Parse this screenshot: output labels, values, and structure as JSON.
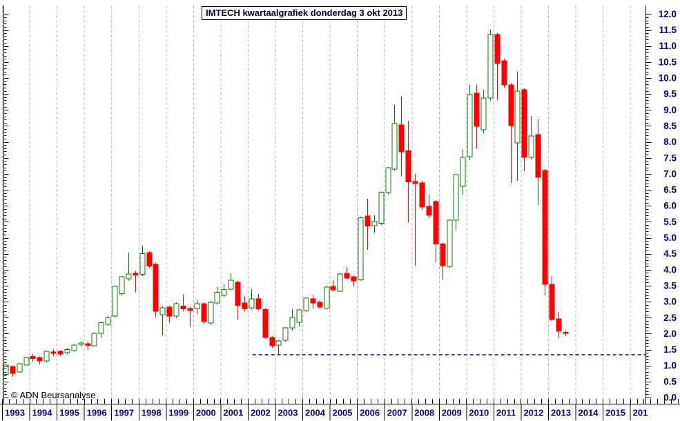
{
  "window": {
    "title_box": "IMTECH kwartaalgrafiek donderdag 3 okt 2013",
    "copyright": "© ADN Beursanalyse"
  },
  "colors": {
    "up": "#008000",
    "up_fill": "#ffffff",
    "down": "#ff0000",
    "grid": "#b9b9b9",
    "axis": "#000000",
    "label": "#00008b",
    "support": "#0000cc"
  },
  "chart_data": {
    "type": "candlestick",
    "title": "IMTECH kwartaalgrafiek donderdag 3 okt 2013",
    "frequency": "quarterly",
    "grid": "vertical-yearly-dashed",
    "x_axis": {
      "year_labels": [
        "1993",
        "1994",
        "1995",
        "1996",
        "1997",
        "1998",
        "1999",
        "2000",
        "2001",
        "2002",
        "2003",
        "2004",
        "2005",
        "2006",
        "2007",
        "2008",
        "2009",
        "2010",
        "2011",
        "2012",
        "2013",
        "2014",
        "2015",
        "201"
      ]
    },
    "y_axis": {
      "side": "right",
      "min": 0.0,
      "max": 12.0,
      "step": 0.5,
      "minor_step": 0.1,
      "tick_labels": [
        "0.0",
        "0.5",
        "1.0",
        "1.5",
        "2.0",
        "2.5",
        "3.0",
        "3.5",
        "4.0",
        "4.5",
        "5.0",
        "5.5",
        "6.0",
        "6.5",
        "7.0",
        "7.5",
        "8.0",
        "8.5",
        "9.0",
        "9.5",
        "10.0",
        "10.5",
        "11.0",
        "11.5",
        "12.0"
      ]
    },
    "support_line": {
      "value": 1.34,
      "style": "dashed",
      "color": "#0000cc",
      "starts_at": "2002 Q2"
    },
    "candles": [
      {
        "t": "1993 Q1",
        "ohlc": [
          0.72,
          1.04,
          0.7,
          1.02
        ]
      },
      {
        "t": "1993 Q2",
        "ohlc": [
          0.97,
          0.99,
          0.65,
          0.76
        ]
      },
      {
        "t": "1993 Q3",
        "ohlc": [
          0.8,
          1.08,
          0.78,
          1.06
        ]
      },
      {
        "t": "1993 Q4",
        "ohlc": [
          1.02,
          1.27,
          1.0,
          1.25
        ]
      },
      {
        "t": "1994 Q1",
        "ohlc": [
          1.28,
          1.36,
          1.12,
          1.22
        ]
      },
      {
        "t": "1994 Q2",
        "ohlc": [
          1.25,
          1.28,
          1.03,
          1.15
        ]
      },
      {
        "t": "1994 Q3",
        "ohlc": [
          1.15,
          1.47,
          1.1,
          1.45
        ]
      },
      {
        "t": "1994 Q4",
        "ohlc": [
          1.43,
          1.52,
          1.28,
          1.38
        ]
      },
      {
        "t": "1995 Q1",
        "ohlc": [
          1.45,
          1.48,
          1.3,
          1.36
        ]
      },
      {
        "t": "1995 Q2",
        "ohlc": [
          1.4,
          1.54,
          1.35,
          1.5
        ]
      },
      {
        "t": "1995 Q3",
        "ohlc": [
          1.47,
          1.67,
          1.44,
          1.64
        ]
      },
      {
        "t": "1995 Q4",
        "ohlc": [
          1.66,
          1.76,
          1.6,
          1.71
        ]
      },
      {
        "t": "1996 Q1",
        "ohlc": [
          1.69,
          1.76,
          1.48,
          1.63
        ]
      },
      {
        "t": "1996 Q2",
        "ohlc": [
          1.62,
          2.03,
          1.6,
          2.01
        ]
      },
      {
        "t": "1996 Q3",
        "ohlc": [
          2.01,
          2.36,
          1.88,
          2.34
        ]
      },
      {
        "t": "1996 Q4",
        "ohlc": [
          2.29,
          2.55,
          2.25,
          2.49
        ]
      },
      {
        "t": "1997 Q1",
        "ohlc": [
          2.55,
          3.5,
          2.5,
          3.48
        ]
      },
      {
        "t": "1997 Q2",
        "ohlc": [
          3.25,
          3.8,
          3.2,
          3.78
        ]
      },
      {
        "t": "1997 Q3",
        "ohlc": [
          3.72,
          4.54,
          3.65,
          3.87
        ]
      },
      {
        "t": "1997 Q4",
        "ohlc": [
          3.89,
          3.96,
          3.29,
          3.83
        ]
      },
      {
        "t": "1998 Q1",
        "ohlc": [
          3.85,
          4.76,
          3.8,
          4.5
        ]
      },
      {
        "t": "1998 Q2",
        "ohlc": [
          4.54,
          4.58,
          4.05,
          4.11
        ]
      },
      {
        "t": "1998 Q3",
        "ohlc": [
          4.17,
          4.22,
          2.53,
          2.7
        ]
      },
      {
        "t": "1998 Q4",
        "ohlc": [
          2.59,
          2.85,
          1.95,
          2.81
        ]
      },
      {
        "t": "1999 Q1",
        "ohlc": [
          2.83,
          2.87,
          2.34,
          2.55
        ]
      },
      {
        "t": "1999 Q2",
        "ohlc": [
          2.55,
          2.98,
          2.5,
          2.94
        ]
      },
      {
        "t": "1999 Q3",
        "ohlc": [
          2.86,
          3.22,
          2.7,
          2.77
        ]
      },
      {
        "t": "1999 Q4",
        "ohlc": [
          2.79,
          2.84,
          2.21,
          2.72
        ]
      },
      {
        "t": "2000 Q1",
        "ohlc": [
          2.78,
          3.05,
          2.6,
          2.94
        ]
      },
      {
        "t": "2000 Q2",
        "ohlc": [
          2.94,
          2.98,
          2.3,
          2.38
        ]
      },
      {
        "t": "2000 Q3",
        "ohlc": [
          2.33,
          3.02,
          2.27,
          2.98
        ]
      },
      {
        "t": "2000 Q4",
        "ohlc": [
          2.96,
          3.46,
          2.9,
          3.29
        ]
      },
      {
        "t": "2001 Q1",
        "ohlc": [
          3.2,
          3.55,
          3.15,
          3.38
        ]
      },
      {
        "t": "2001 Q2",
        "ohlc": [
          3.39,
          3.89,
          3.35,
          3.67
        ]
      },
      {
        "t": "2001 Q3",
        "ohlc": [
          3.61,
          3.65,
          2.44,
          2.88
        ]
      },
      {
        "t": "2001 Q4",
        "ohlc": [
          2.96,
          3.18,
          2.7,
          2.77
        ]
      },
      {
        "t": "2002 Q1",
        "ohlc": [
          2.81,
          3.39,
          2.75,
          3.09
        ]
      },
      {
        "t": "2002 Q2",
        "ohlc": [
          3.09,
          3.25,
          2.72,
          2.77
        ]
      },
      {
        "t": "2002 Q3",
        "ohlc": [
          2.75,
          2.8,
          1.85,
          1.88
        ]
      },
      {
        "t": "2002 Q4",
        "ohlc": [
          1.88,
          1.92,
          1.55,
          1.62
        ]
      },
      {
        "t": "2003 Q1",
        "ohlc": [
          1.64,
          1.8,
          1.32,
          1.77
        ]
      },
      {
        "t": "2003 Q2",
        "ohlc": [
          1.79,
          2.2,
          1.75,
          2.18
        ]
      },
      {
        "t": "2003 Q3",
        "ohlc": [
          2.18,
          2.76,
          2.1,
          2.51
        ]
      },
      {
        "t": "2003 Q4",
        "ohlc": [
          2.35,
          2.78,
          2.22,
          2.74
        ]
      },
      {
        "t": "2004 Q1",
        "ohlc": [
          2.72,
          3.13,
          2.68,
          3.11
        ]
      },
      {
        "t": "2004 Q2",
        "ohlc": [
          3.09,
          3.22,
          2.79,
          2.96
        ]
      },
      {
        "t": "2004 Q3",
        "ohlc": [
          2.98,
          3.04,
          2.78,
          2.83
        ]
      },
      {
        "t": "2004 Q4",
        "ohlc": [
          2.79,
          3.49,
          2.75,
          3.46
        ]
      },
      {
        "t": "2005 Q1",
        "ohlc": [
          3.48,
          3.67,
          3.33,
          3.37
        ]
      },
      {
        "t": "2005 Q2",
        "ohlc": [
          3.33,
          3.9,
          3.3,
          3.87
        ]
      },
      {
        "t": "2005 Q3",
        "ohlc": [
          3.89,
          4.08,
          3.7,
          3.74
        ]
      },
      {
        "t": "2005 Q4",
        "ohlc": [
          3.78,
          3.82,
          3.48,
          3.65
        ]
      },
      {
        "t": "2006 Q1",
        "ohlc": [
          3.68,
          5.66,
          3.65,
          5.63
        ]
      },
      {
        "t": "2006 Q2",
        "ohlc": [
          5.68,
          6.22,
          4.62,
          5.37
        ]
      },
      {
        "t": "2006 Q3",
        "ohlc": [
          5.38,
          5.7,
          5.15,
          5.51
        ]
      },
      {
        "t": "2006 Q4",
        "ohlc": [
          5.45,
          6.45,
          5.4,
          6.43
        ]
      },
      {
        "t": "2007 Q1",
        "ohlc": [
          6.41,
          7.21,
          6.35,
          7.19
        ]
      },
      {
        "t": "2007 Q2",
        "ohlc": [
          7.15,
          9.16,
          7.1,
          8.57
        ]
      },
      {
        "t": "2007 Q3",
        "ohlc": [
          8.53,
          9.42,
          6.93,
          7.69
        ]
      },
      {
        "t": "2007 Q4",
        "ohlc": [
          7.72,
          8.66,
          5.48,
          6.75
        ]
      },
      {
        "t": "2008 Q1",
        "ohlc": [
          6.76,
          7.0,
          4.12,
          6.7
        ]
      },
      {
        "t": "2008 Q2",
        "ohlc": [
          6.72,
          6.78,
          5.88,
          5.96
        ]
      },
      {
        "t": "2008 Q3",
        "ohlc": [
          5.98,
          6.35,
          5.62,
          5.7
        ]
      },
      {
        "t": "2008 Q4",
        "ohlc": [
          6.13,
          6.18,
          4.23,
          4.81
        ]
      },
      {
        "t": "2009 Q1",
        "ohlc": [
          4.81,
          4.85,
          3.69,
          4.13
        ]
      },
      {
        "t": "2009 Q2",
        "ohlc": [
          4.1,
          5.57,
          4.05,
          5.55
        ]
      },
      {
        "t": "2009 Q3",
        "ohlc": [
          5.55,
          7.0,
          5.23,
          6.98
        ]
      },
      {
        "t": "2009 Q4",
        "ohlc": [
          6.61,
          7.76,
          6.35,
          7.52
        ]
      },
      {
        "t": "2010 Q1",
        "ohlc": [
          7.54,
          9.79,
          7.43,
          9.48
        ]
      },
      {
        "t": "2010 Q2",
        "ohlc": [
          9.52,
          9.79,
          7.8,
          8.49
        ]
      },
      {
        "t": "2010 Q3",
        "ohlc": [
          8.38,
          9.63,
          8.27,
          9.37
        ]
      },
      {
        "t": "2010 Q4",
        "ohlc": [
          9.37,
          11.51,
          9.3,
          11.36
        ]
      },
      {
        "t": "2011 Q1",
        "ohlc": [
          11.36,
          11.42,
          9.31,
          10.45
        ]
      },
      {
        "t": "2011 Q2",
        "ohlc": [
          10.54,
          10.6,
          9.7,
          9.78
        ]
      },
      {
        "t": "2011 Q3",
        "ohlc": [
          9.78,
          9.85,
          6.72,
          8.51
        ]
      },
      {
        "t": "2011 Q4",
        "ohlc": [
          7.97,
          10.21,
          6.78,
          9.59
        ]
      },
      {
        "t": "2012 Q1",
        "ohlc": [
          9.63,
          9.68,
          7.08,
          7.52
        ]
      },
      {
        "t": "2012 Q2",
        "ohlc": [
          7.52,
          8.81,
          7.45,
          8.19
        ]
      },
      {
        "t": "2012 Q3",
        "ohlc": [
          8.23,
          8.7,
          6.03,
          6.89
        ]
      },
      {
        "t": "2012 Q4",
        "ohlc": [
          7.11,
          7.15,
          3.2,
          3.54
        ]
      },
      {
        "t": "2013 Q1",
        "ohlc": [
          3.54,
          3.8,
          2.4,
          2.44
        ]
      },
      {
        "t": "2013 Q2",
        "ohlc": [
          2.46,
          2.68,
          1.86,
          2.07
        ]
      },
      {
        "t": "2013 Q3",
        "ohlc": [
          2.04,
          2.1,
          1.93,
          2.01
        ]
      }
    ]
  }
}
